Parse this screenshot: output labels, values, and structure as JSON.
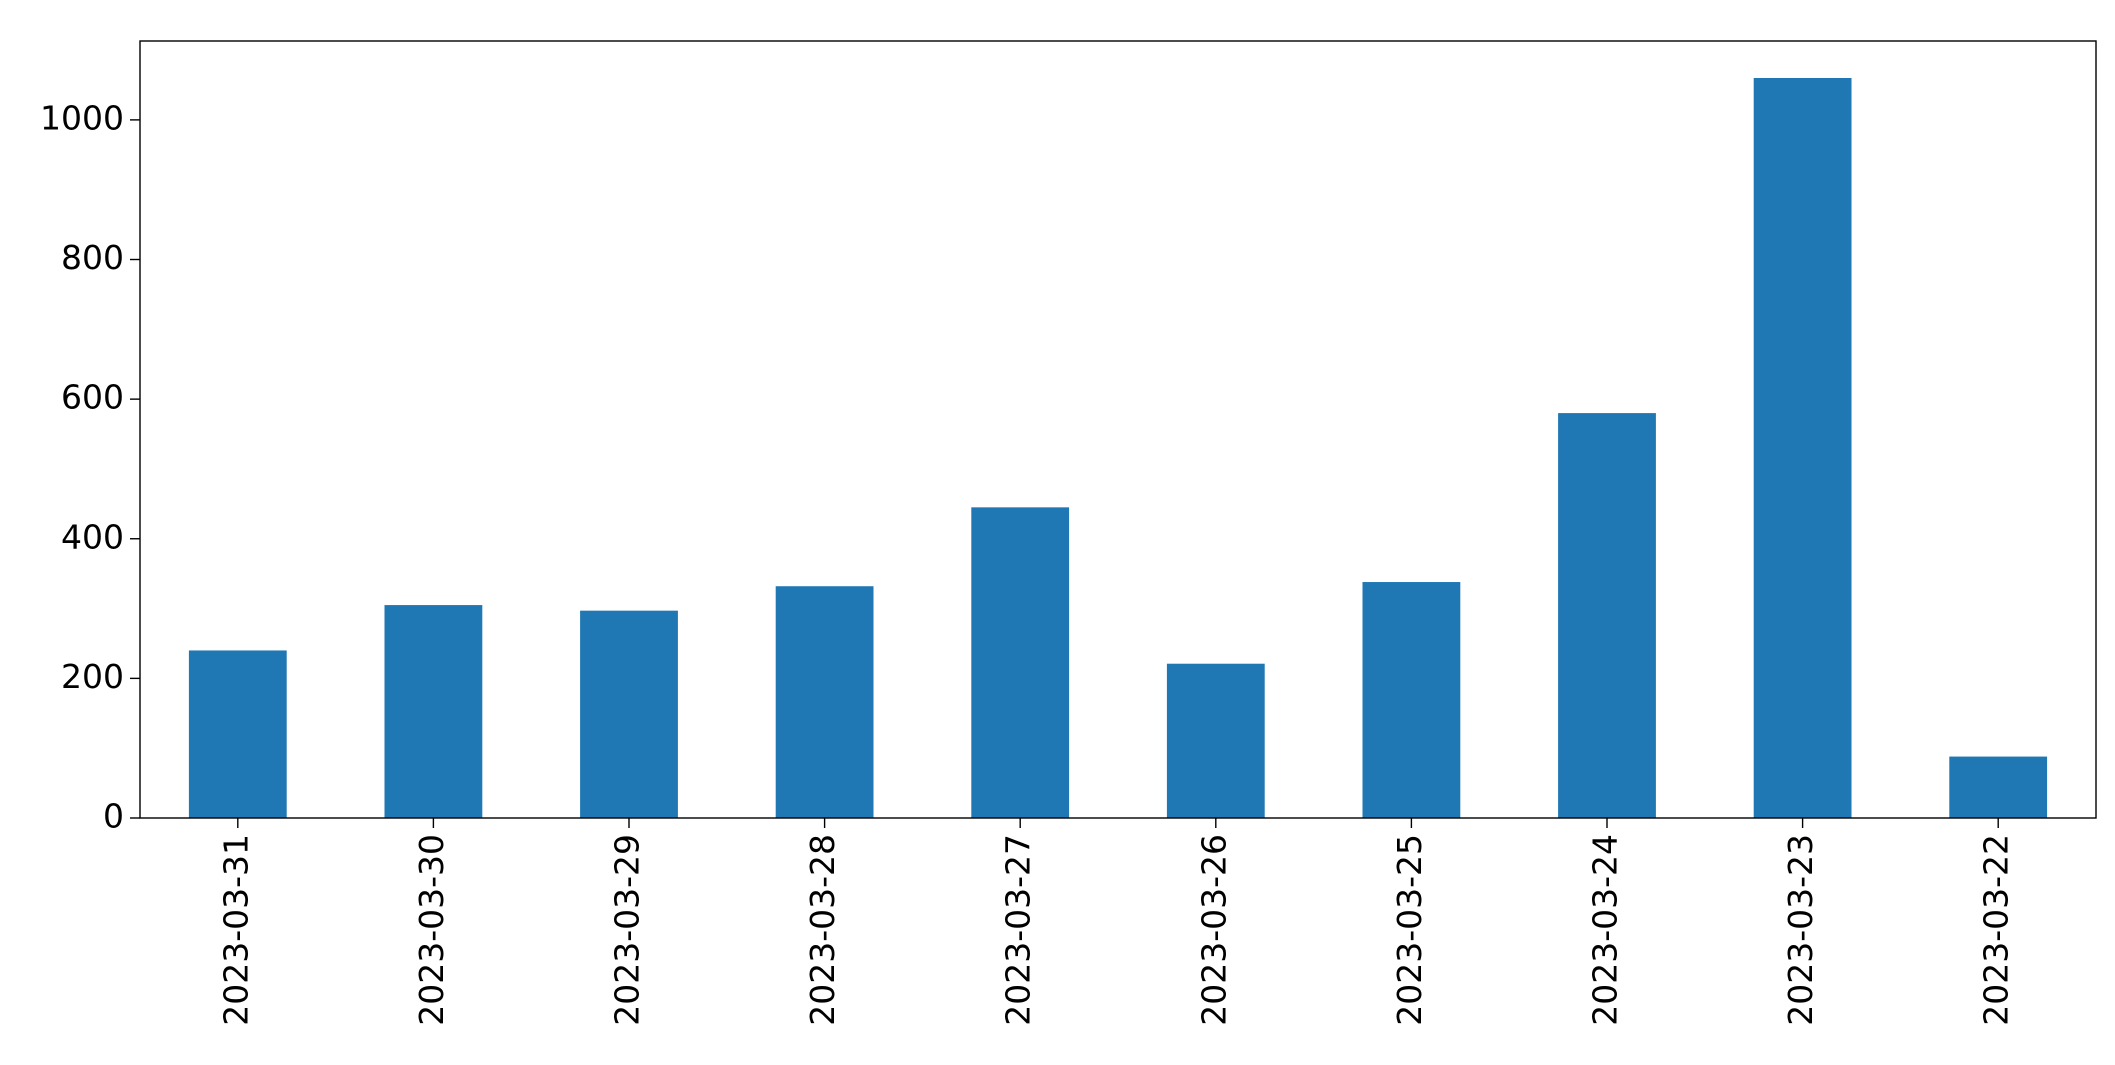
{
  "chart_data": {
    "type": "bar",
    "categories": [
      "2023-03-31",
      "2023-03-30",
      "2023-03-29",
      "2023-03-28",
      "2023-03-27",
      "2023-03-26",
      "2023-03-25",
      "2023-03-24",
      "2023-03-23",
      "2023-03-22"
    ],
    "values": [
      240,
      305,
      297,
      332,
      445,
      221,
      338,
      580,
      1060,
      88
    ],
    "color": "#1f77b4",
    "ylim": [
      0,
      1113
    ],
    "yticks": [
      0,
      200,
      400,
      600,
      800,
      1000
    ],
    "grid": false
  }
}
